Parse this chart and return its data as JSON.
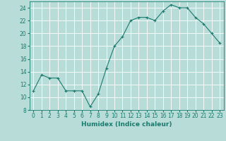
{
  "x": [
    0,
    1,
    2,
    3,
    4,
    5,
    6,
    7,
    8,
    9,
    10,
    11,
    12,
    13,
    14,
    15,
    16,
    17,
    18,
    19,
    20,
    21,
    22,
    23
  ],
  "y": [
    11,
    13.5,
    13,
    13,
    11,
    11,
    11,
    8.5,
    10.5,
    14.5,
    18,
    19.5,
    22,
    22.5,
    22.5,
    22,
    23.5,
    24.5,
    24,
    24,
    22.5,
    21.5,
    20,
    18.5
  ],
  "line_color": "#1a7a6e",
  "marker_color": "#1a7a6e",
  "bg_color": "#b8ddd8",
  "grid_color": "#ffffff",
  "xlabel": "Humidex (Indice chaleur)",
  "xlim": [
    -0.5,
    23.5
  ],
  "ylim": [
    8,
    25
  ],
  "yticks": [
    8,
    10,
    12,
    14,
    16,
    18,
    20,
    22,
    24
  ],
  "xtick_labels": [
    "0",
    "1",
    "2",
    "3",
    "4",
    "5",
    "6",
    "7",
    "8",
    "9",
    "10",
    "11",
    "12",
    "13",
    "14",
    "15",
    "16",
    "17",
    "18",
    "19",
    "20",
    "21",
    "22",
    "23"
  ],
  "label_fontsize": 6.5,
  "tick_fontsize": 5.5
}
